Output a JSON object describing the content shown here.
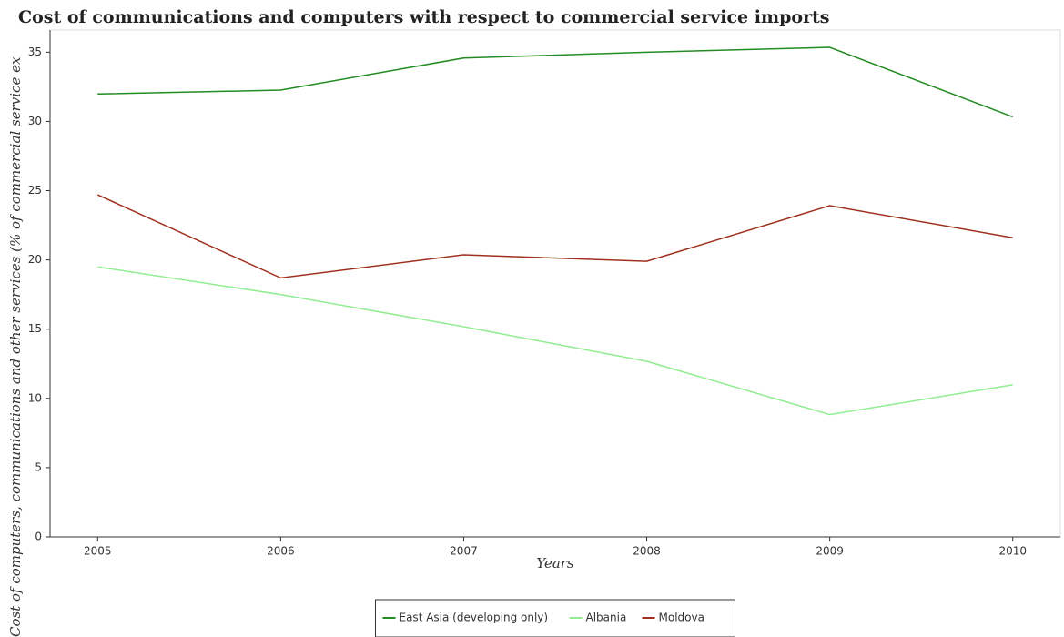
{
  "chart_data": {
    "type": "line",
    "title": "Cost of communications and computers with respect to commercial service imports",
    "xlabel": "Years",
    "ylabel": "Cost of computers, communications and other services (% of commercial service ex",
    "x": [
      2005,
      2006,
      2007,
      2008,
      2009,
      2010
    ],
    "xlim": [
      2004.74,
      2010.26
    ],
    "xticks": [
      2005,
      2006,
      2007,
      2008,
      2009,
      2010
    ],
    "ylim": [
      0,
      36.6
    ],
    "yticks": [
      0,
      5,
      10,
      15,
      20,
      25,
      30,
      35
    ],
    "legend": "bottom",
    "series": [
      {
        "name": "East Asia (developing only)",
        "color": "#228b22",
        "values": [
          31.98,
          32.26,
          34.58,
          35.0,
          35.35,
          30.33
        ]
      },
      {
        "name": "Albania",
        "color": "#90ee90",
        "values": [
          19.5,
          17.5,
          15.18,
          12.68,
          8.83,
          10.98
        ]
      },
      {
        "name": "Moldova",
        "color": "#a0301e",
        "values": [
          24.7,
          18.7,
          20.37,
          19.9,
          23.92,
          21.6
        ]
      }
    ]
  }
}
